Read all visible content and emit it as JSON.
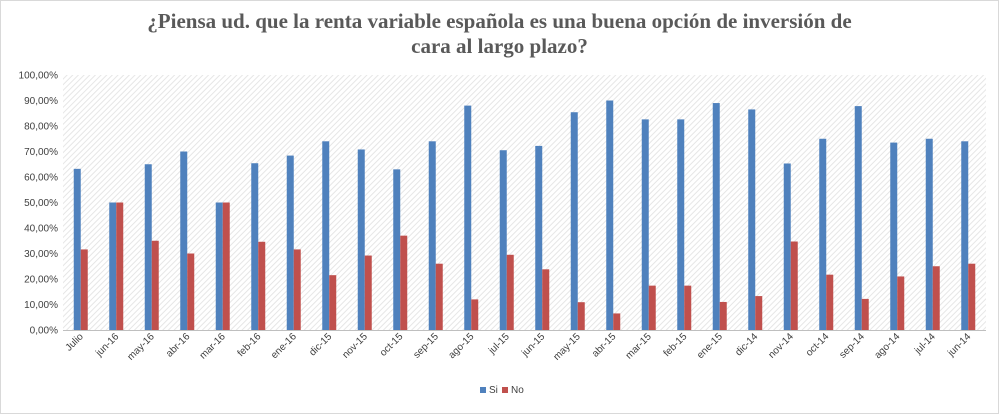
{
  "chart_data": {
    "type": "bar",
    "title_lines": [
      "¿Piensa ud. que la renta variable española es una buena opción de inversión de",
      "cara al largo plazo?"
    ],
    "categories": [
      "Julio",
      "jun-16",
      "may-16",
      "abr-16",
      "mar-16",
      "feb-16",
      "ene-16",
      "dic-15",
      "nov-15",
      "oct-15",
      "sep-15",
      "ago-15",
      "jul-15",
      "jun-15",
      "may-15",
      "abr-15",
      "mar-15",
      "feb-15",
      "ene-15",
      "dic-14",
      "nov-14",
      "oct-14",
      "sep-14",
      "ago-14",
      "jul-14",
      "jun-14"
    ],
    "series": [
      {
        "name": "Si",
        "color": "#4f81bd",
        "values": [
          63.2,
          50.0,
          65.0,
          70.0,
          50.0,
          65.4,
          68.4,
          74.0,
          70.8,
          63.0,
          74.0,
          88.0,
          70.5,
          72.2,
          85.4,
          90.0,
          82.6,
          82.6,
          89.0,
          86.5,
          65.3,
          75.0,
          87.8,
          73.5,
          75.0,
          74.0
        ]
      },
      {
        "name": "No",
        "color": "#c0504d",
        "values": [
          31.6,
          50.0,
          35.0,
          30.0,
          50.0,
          34.6,
          31.6,
          21.5,
          29.2,
          37.0,
          26.0,
          12.0,
          29.5,
          23.8,
          10.9,
          6.5,
          17.4,
          17.4,
          11.0,
          13.3,
          34.7,
          21.7,
          12.2,
          21.0,
          25.0,
          26.0
        ]
      }
    ],
    "ylim": [
      0,
      100
    ],
    "yticks": [
      0,
      10,
      20,
      30,
      40,
      50,
      60,
      70,
      80,
      90,
      100
    ],
    "ytick_labels": [
      "0,00%",
      "10,00%",
      "20,00%",
      "30,00%",
      "40,00%",
      "50,00%",
      "60,00%",
      "70,00%",
      "80,00%",
      "90,00%",
      "100,00%"
    ],
    "xlabel": "",
    "ylabel": "",
    "legend_position": "bottom",
    "grid": "hatched-background"
  }
}
